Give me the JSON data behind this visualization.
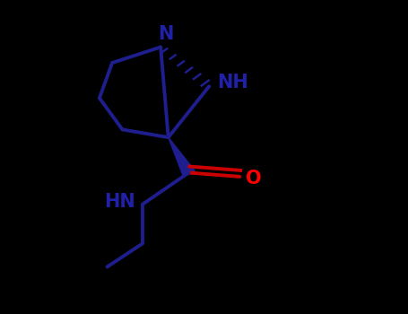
{
  "background_color": "#000000",
  "bond_color": "#1e1e8f",
  "carbonyl_O_color": "#ff0000",
  "carbonyl_bond_color": "#cc0000",
  "text_color_blue": "#2020aa",
  "text_color_red": "#ff0000",
  "NH_top_text": "NH",
  "N_top_text": "N",
  "HN_bottom_text": "HN",
  "O_text": "O",
  "figsize": [
    4.55,
    3.5
  ],
  "dpi": 100
}
